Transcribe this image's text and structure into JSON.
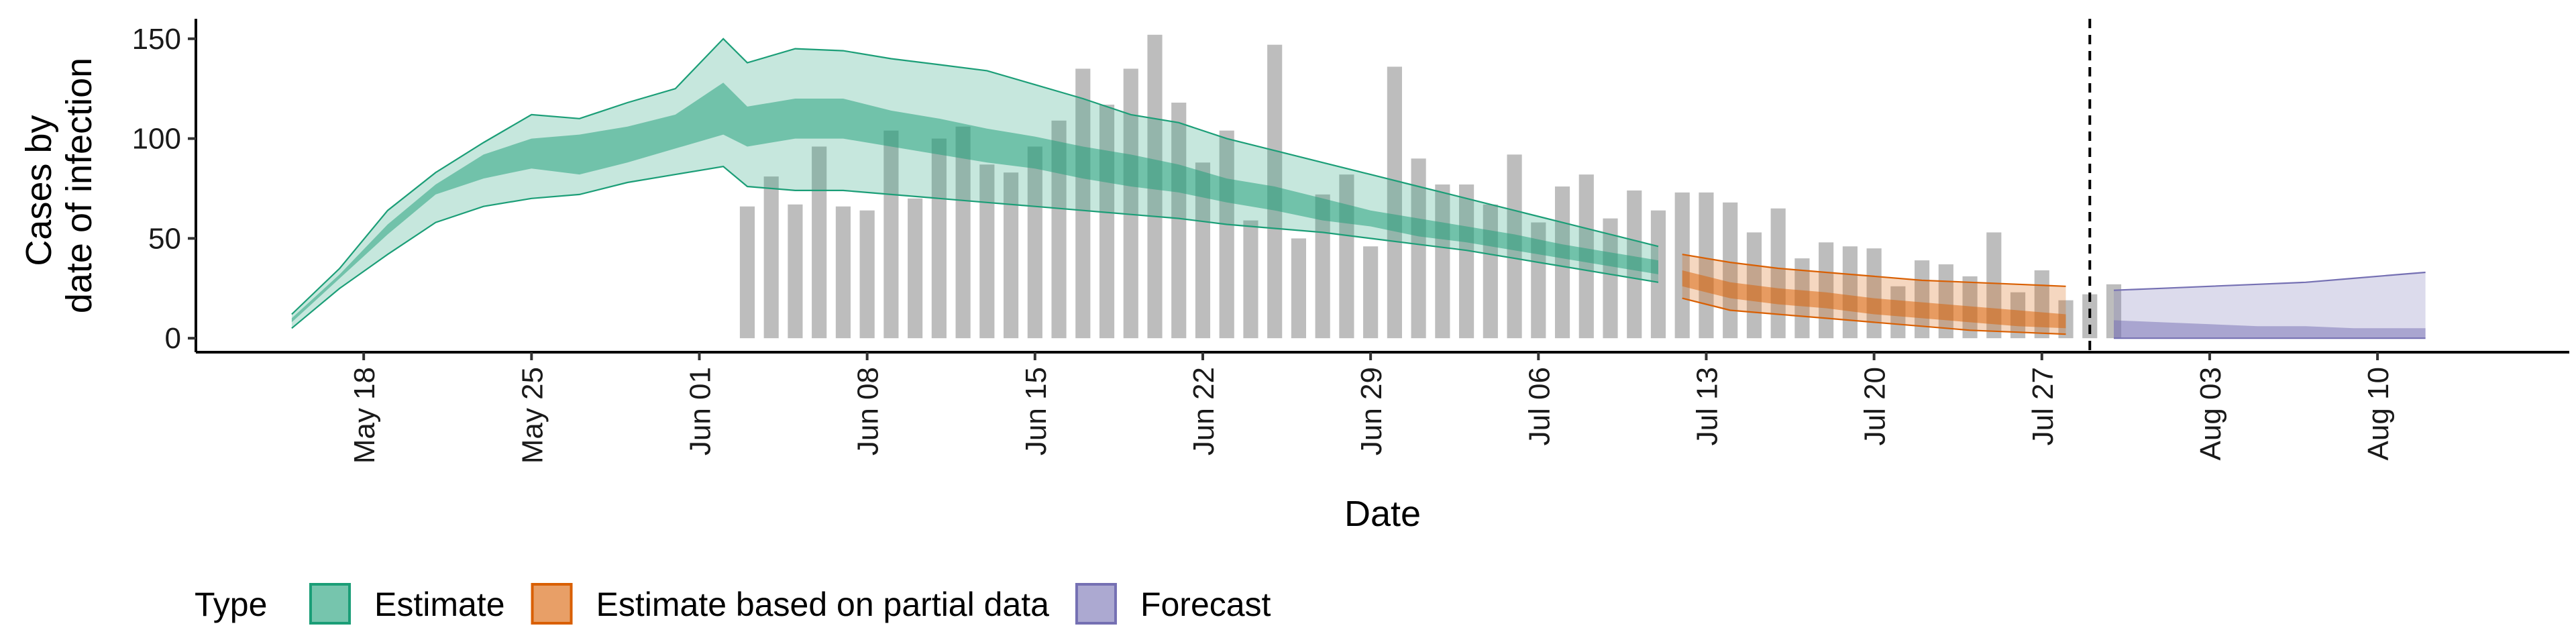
{
  "chart_data": {
    "type": "area",
    "xlabel": "Date",
    "ylabel": "Cases by date of infection",
    "ylabel_lines": [
      "Cases by",
      "date of infection"
    ],
    "xlim": [
      "2020-05-11",
      "2020-08-18"
    ],
    "ylim": [
      -7,
      160
    ],
    "yticks": [
      0,
      50,
      100,
      150
    ],
    "xticks": [
      {
        "date": "2020-05-18",
        "label": "May 18"
      },
      {
        "date": "2020-05-25",
        "label": "May 25"
      },
      {
        "date": "2020-06-01",
        "label": "Jun 01"
      },
      {
        "date": "2020-06-08",
        "label": "Jun 08"
      },
      {
        "date": "2020-06-15",
        "label": "Jun 15"
      },
      {
        "date": "2020-06-22",
        "label": "Jun 22"
      },
      {
        "date": "2020-06-29",
        "label": "Jun 29"
      },
      {
        "date": "2020-07-06",
        "label": "Jul 06"
      },
      {
        "date": "2020-07-13",
        "label": "Jul 13"
      },
      {
        "date": "2020-07-20",
        "label": "Jul 20"
      },
      {
        "date": "2020-07-27",
        "label": "Jul 27"
      },
      {
        "date": "2020-08-03",
        "label": "Aug 03"
      },
      {
        "date": "2020-08-10",
        "label": "Aug 10"
      }
    ],
    "vline_date": "2020-07-29",
    "observed_cases": {
      "start_date": "2020-06-03",
      "values": [
        66,
        81,
        67,
        96,
        66,
        64,
        104,
        70,
        100,
        106,
        87,
        83,
        96,
        109,
        135,
        117,
        135,
        152,
        118,
        88,
        104,
        59,
        147,
        50,
        72,
        82,
        46,
        136,
        90,
        77,
        77,
        67,
        92,
        58,
        76,
        82,
        60,
        74,
        64,
        73,
        73,
        68,
        53,
        65,
        40,
        48,
        46,
        45,
        26,
        39,
        37,
        31,
        53,
        23,
        34,
        19,
        22,
        27
      ]
    },
    "legend": {
      "title": "Type",
      "entries": [
        {
          "label": "Estimate",
          "color": "#1b9e77"
        },
        {
          "label": "Estimate based on partial data",
          "color": "#d95f02"
        },
        {
          "label": "Forecast",
          "color": "#7570b3"
        }
      ]
    },
    "series": [
      {
        "name": "Estimate",
        "color": "#1b9e77",
        "dates": [
          "2020-05-15",
          "2020-05-17",
          "2020-05-19",
          "2020-05-21",
          "2020-05-23",
          "2020-05-25",
          "2020-05-27",
          "2020-05-29",
          "2020-05-31",
          "2020-06-02",
          "2020-06-03",
          "2020-06-05",
          "2020-06-07",
          "2020-06-09",
          "2020-06-11",
          "2020-06-13",
          "2020-06-15",
          "2020-06-17",
          "2020-06-19",
          "2020-06-21",
          "2020-06-23",
          "2020-06-25",
          "2020-06-27",
          "2020-06-29",
          "2020-07-01",
          "2020-07-03",
          "2020-07-05",
          "2020-07-07",
          "2020-07-09",
          "2020-07-11"
        ],
        "lower90": [
          5,
          25,
          42,
          58,
          66,
          70,
          72,
          78,
          82,
          86,
          76,
          74,
          74,
          72,
          70,
          68,
          66,
          64,
          62,
          60,
          57,
          55,
          53,
          50,
          47,
          44,
          40,
          36,
          32,
          28
        ],
        "upper90": [
          12,
          35,
          64,
          83,
          98,
          112,
          110,
          118,
          125,
          150,
          138,
          145,
          144,
          140,
          137,
          134,
          127,
          120,
          112,
          108,
          100,
          94,
          88,
          82,
          76,
          70,
          64,
          58,
          52,
          46
        ],
        "lower50": [
          8,
          30,
          52,
          72,
          80,
          85,
          82,
          88,
          95,
          102,
          96,
          100,
          100,
          96,
          92,
          88,
          85,
          80,
          76,
          73,
          68,
          64,
          59,
          56,
          51,
          48,
          44,
          40,
          36,
          32
        ],
        "upper50": [
          10,
          32,
          57,
          77,
          92,
          100,
          102,
          106,
          112,
          128,
          116,
          120,
          120,
          114,
          110,
          105,
          101,
          96,
          92,
          87,
          80,
          76,
          70,
          64,
          60,
          56,
          52,
          47,
          43,
          39
        ]
      },
      {
        "name": "Estimate based on partial data",
        "color": "#d95f02",
        "dates": [
          "2020-07-12",
          "2020-07-14",
          "2020-07-16",
          "2020-07-18",
          "2020-07-20",
          "2020-07-22",
          "2020-07-24",
          "2020-07-26",
          "2020-07-28"
        ],
        "lower90": [
          20,
          14,
          12,
          10,
          8,
          6,
          4,
          3,
          2
        ],
        "upper90": [
          42,
          38,
          35,
          33,
          31,
          29,
          28,
          27,
          26
        ],
        "lower50": [
          26,
          20,
          17,
          15,
          12,
          10,
          8,
          6,
          5
        ],
        "upper50": [
          34,
          28,
          25,
          23,
          20,
          18,
          16,
          14,
          12
        ]
      },
      {
        "name": "Forecast",
        "color": "#7570b3",
        "dates": [
          "2020-07-30",
          "2020-08-01",
          "2020-08-03",
          "2020-08-05",
          "2020-08-07",
          "2020-08-09",
          "2020-08-11",
          "2020-08-12"
        ],
        "lower90": [
          0,
          0,
          0,
          0,
          0,
          0,
          0,
          0
        ],
        "upper90": [
          24,
          25,
          26,
          27,
          28,
          30,
          32,
          33
        ],
        "lower50": [
          0,
          0,
          0,
          0,
          0,
          0,
          0,
          0
        ],
        "upper50": [
          9,
          8,
          7,
          6,
          6,
          5,
          5,
          5
        ]
      }
    ]
  }
}
